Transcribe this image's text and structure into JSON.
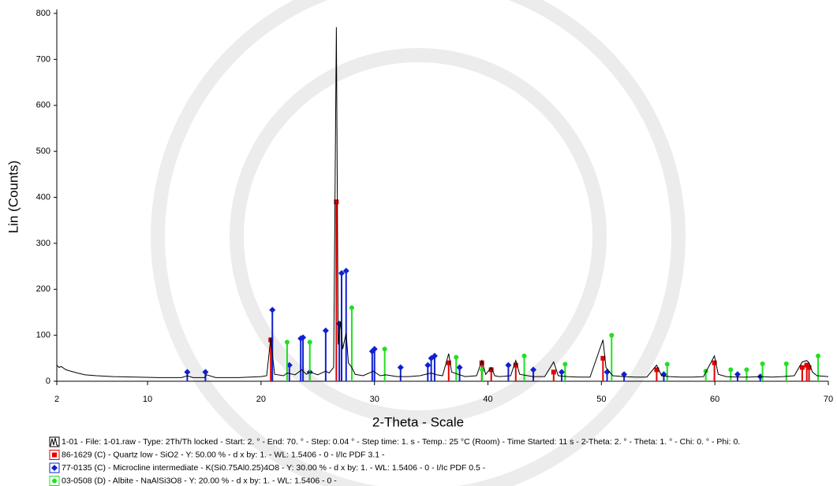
{
  "chart_data": {
    "type": "xrd",
    "xlabel": "2-Theta - Scale",
    "ylabel": "Lin (Counts)",
    "xlim": [
      2,
      70
    ],
    "ylim": [
      0,
      800
    ],
    "xticks": [
      2,
      10,
      20,
      30,
      40,
      50,
      60,
      70
    ],
    "yticks": [
      0,
      100,
      200,
      300,
      400,
      500,
      600,
      700,
      800
    ],
    "series": [
      {
        "name": "1-01 - File: 1-01.raw - Type: 2Th/Th locked - Start: 2. ° - End: 70. ° - Step: 0.04 ° - Step time: 1. s - Temp.: 25 °C (Room) - Time Started: 11 s - 2-Theta: 2. ° - Theta: 1. ° - Chi: 0. ° - Phi: 0.",
        "kind": "pattern",
        "color": "#000000",
        "x": [
          2,
          2.2,
          2.4,
          2.8,
          3.2,
          3.8,
          4.5,
          5.5,
          7,
          9,
          11,
          13,
          13.5,
          14,
          15,
          15.2,
          16,
          18,
          20,
          20.5,
          20.86,
          21.0,
          21.2,
          22,
          22.3,
          23,
          23.6,
          24,
          24.3,
          25,
          25.7,
          26,
          26.4,
          26.64,
          26.8,
          27.0,
          27.2,
          27.5,
          27.7,
          28.0,
          28.3,
          29,
          29.9,
          30.5,
          31,
          32,
          33,
          34,
          35,
          35.5,
          36,
          36.54,
          36.8,
          37.5,
          38,
          39,
          39.47,
          39.8,
          40.29,
          40.6,
          41,
          42,
          42.45,
          42.8,
          43.5,
          44,
          45,
          45.79,
          46.2,
          47,
          48,
          49,
          50.14,
          50.4,
          51,
          52,
          53,
          54,
          54.87,
          55.3,
          56,
          57,
          58,
          59,
          59.96,
          60.3,
          61,
          62,
          63,
          64,
          65,
          66,
          67,
          67.7,
          68.1,
          68.3,
          68.6,
          69,
          70
        ],
        "values": [
          35,
          30,
          32,
          25,
          22,
          18,
          14,
          12,
          10,
          9,
          8,
          8,
          12,
          8,
          8,
          14,
          8,
          8,
          10,
          12,
          95,
          60,
          15,
          12,
          18,
          14,
          25,
          15,
          20,
          14,
          22,
          18,
          30,
          770,
          80,
          130,
          70,
          105,
          40,
          30,
          15,
          12,
          22,
          12,
          14,
          10,
          10,
          12,
          18,
          14,
          12,
          60,
          20,
          14,
          10,
          12,
          45,
          15,
          30,
          12,
          10,
          12,
          45,
          15,
          12,
          10,
          10,
          42,
          12,
          10,
          9,
          9,
          90,
          30,
          12,
          10,
          9,
          9,
          35,
          12,
          10,
          9,
          9,
          10,
          55,
          15,
          10,
          9,
          9,
          10,
          9,
          10,
          12,
          42,
          45,
          40,
          20,
          12,
          10
        ]
      },
      {
        "name": "86-1629 (C) - Quartz low - SiO2 - Y: 50.00 % - d x by: 1. - WL: 1.5406 - 0 - I/Ic PDF 3.1 -",
        "kind": "sticks",
        "marker": "square",
        "color": "#e00000",
        "x": [
          20.86,
          26.64,
          36.54,
          39.46,
          40.29,
          42.45,
          45.79,
          50.14,
          54.87,
          59.96,
          67.7,
          68.1,
          68.3
        ],
        "values": [
          90,
          390,
          40,
          40,
          25,
          35,
          20,
          50,
          25,
          40,
          30,
          35,
          30
        ]
      },
      {
        "name": "77-0135 (C) - Microcline intermediate - K(Si0.75Al0.25)4O8 - Y: 30.00 % - d x by: 1. - WL: 1.5406 - 0 - I/Ic PDF 0.5 -",
        "kind": "sticks",
        "marker": "diamond",
        "color": "#1020d0",
        "x": [
          13.5,
          15.1,
          21.0,
          22.5,
          23.5,
          23.7,
          24.3,
          25.7,
          26.9,
          27.1,
          27.5,
          29.8,
          30.0,
          32.3,
          34.7,
          35.0,
          35.3,
          37.5,
          41.8,
          44.0,
          46.5,
          50.5,
          52.0,
          55.5,
          62.0,
          64.0
        ],
        "values": [
          20,
          20,
          155,
          35,
          93,
          95,
          20,
          110,
          125,
          235,
          240,
          65,
          70,
          30,
          35,
          50,
          55,
          30,
          35,
          25,
          20,
          20,
          15,
          15,
          15,
          10
        ]
      },
      {
        "name": "03-0508 (D) - Albite - NaAlSi3O8 - Y: 20.00 % - d x by: 1. - WL: 1.5406 - 0 -",
        "kind": "sticks",
        "marker": "circle",
        "color": "#20e020",
        "x": [
          22.3,
          24.3,
          28.0,
          30.9,
          37.2,
          39.5,
          43.2,
          46.8,
          50.9,
          55.8,
          59.2,
          61.4,
          62.8,
          64.2,
          66.3,
          69.1
        ],
        "values": [
          85,
          85,
          160,
          70,
          52,
          25,
          55,
          37,
          100,
          37,
          22,
          25,
          25,
          38,
          38,
          55
        ]
      }
    ]
  }
}
